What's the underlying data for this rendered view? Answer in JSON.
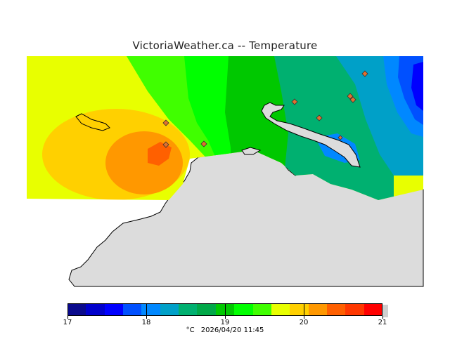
{
  "title": "VictoriaWeather.ca -- Temperature",
  "legend": {
    "min": 17,
    "max": 21,
    "tick_labels": [
      "17",
      "18",
      "19",
      "20",
      "21"
    ],
    "unit": "°C",
    "timestamp": "2026/04/20 11:45",
    "colors": [
      "#0a0a8c",
      "#0000cc",
      "#0000ff",
      "#0050ff",
      "#0088ff",
      "#00a0c8",
      "#00b070",
      "#00a848",
      "#00c800",
      "#00ff00",
      "#40ff00",
      "#e8ff00",
      "#ffd000",
      "#ff9800",
      "#ff6000",
      "#ff3800",
      "#ff0000"
    ]
  },
  "map": {
    "land_color": "#dcdcdc",
    "coast_color": "#000000",
    "station_color": "#e07030",
    "stations_count": 9
  }
}
